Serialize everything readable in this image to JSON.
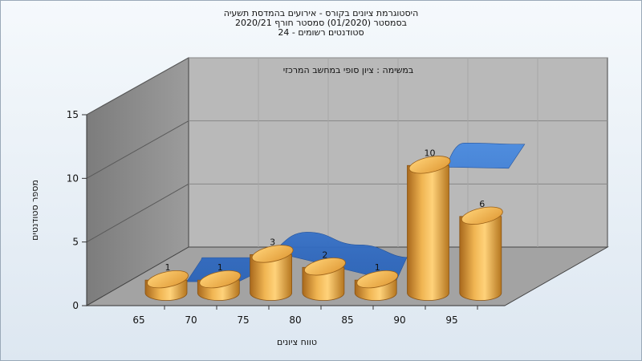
{
  "titles": {
    "line1": "היסטוגרמת ציונים בקורס - אירועים בהמדסת תשעיה",
    "line2": "בסמסטר  (01/2020)  סמסטר חורף  2020/21",
    "line3": "סטודנטים רשומים - 24"
  },
  "chart_data": {
    "type": "bar",
    "title": "היסטוגרמת ציונים בקורס - אירועים בהמדסת תשעיה",
    "subtitle": "בסמסטר  (01/2020)  סמסטר חורף  2020/21",
    "annotation": "במשימה : ציון סופי במחשב המרכזי",
    "xlabel": "טווח ציונים",
    "ylabel": "מספר סטודנטים",
    "ylim": [
      0,
      15
    ],
    "yticks": [
      0,
      5,
      10,
      15
    ],
    "categories": [
      "65",
      "70",
      "75",
      "80",
      "85",
      "90",
      "95"
    ],
    "values": [
      1,
      1,
      3,
      2,
      1,
      10,
      6
    ],
    "grid": true,
    "style": "3d-cylinders-with-ribbon",
    "colors": {
      "bar": "#e8a83c",
      "ribbon": "#3a78d4",
      "back_wall": "#b8b8b8",
      "side_wall": "#8a8a8a",
      "floor": "#a2a2a2"
    }
  }
}
